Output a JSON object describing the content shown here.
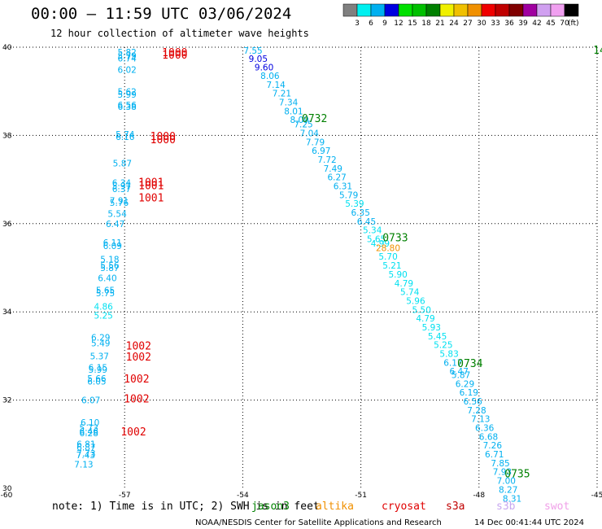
{
  "title": "00:00 — 11:59 UTC 03/06/2024",
  "subtitle": "12 hour collection of altimeter wave heights",
  "colorbar": {
    "colors": [
      "#808080",
      "#00f0f0",
      "#00b0f0",
      "#0000e0",
      "#00e000",
      "#00c000",
      "#008000",
      "#f0f000",
      "#f0c000",
      "#f09000",
      "#f00000",
      "#c00000",
      "#800000",
      "#a000a0",
      "#d0a0f0",
      "#f0a0f0",
      "#000000"
    ],
    "labels": [
      "3",
      "6",
      "9",
      "12",
      "15",
      "18",
      "21",
      "24",
      "27",
      "30",
      "33",
      "36",
      "39",
      "42",
      "45",
      "70"
    ],
    "unit": "(ft)"
  },
  "chart_data": {
    "type": "scatter",
    "xlim": [
      -60,
      -45
    ],
    "ylim": [
      30,
      40
    ],
    "x_ticks": [
      "-60",
      "-57",
      "-54",
      "-51",
      "-48",
      "-45"
    ],
    "y_ticks": [
      "30",
      "32",
      "34",
      "36",
      "38",
      "40"
    ],
    "grid": true,
    "swh_points": [
      {
        "x": -57.18,
        "y": 39.82,
        "v": "5.82",
        "c": "#00b0f0"
      },
      {
        "x": -57.18,
        "y": 39.73,
        "v": "5.79",
        "c": "#00b0f0"
      },
      {
        "x": -57.18,
        "y": 39.68,
        "v": "6.74",
        "c": "#00b0f0"
      },
      {
        "x": -57.18,
        "y": 39.42,
        "v": "6.02",
        "c": "#00b0f0"
      },
      {
        "x": -57.18,
        "y": 38.92,
        "v": "5.62",
        "c": "#00b0f0"
      },
      {
        "x": -57.18,
        "y": 38.86,
        "v": "5.99",
        "c": "#00b0f0"
      },
      {
        "x": -57.18,
        "y": 38.62,
        "v": "6.56",
        "c": "#00b0f0"
      },
      {
        "x": -57.18,
        "y": 38.58,
        "v": "6.38",
        "c": "#00b0f0"
      },
      {
        "x": -57.23,
        "y": 37.95,
        "v": "5.74",
        "c": "#00b0f0"
      },
      {
        "x": -57.23,
        "y": 37.9,
        "v": "6.16",
        "c": "#00b0f0"
      },
      {
        "x": -57.3,
        "y": 37.3,
        "v": "5.87",
        "c": "#00b0f0"
      },
      {
        "x": -57.32,
        "y": 36.85,
        "v": "6.34",
        "c": "#00b0f0"
      },
      {
        "x": -57.32,
        "y": 36.78,
        "v": "5.97",
        "c": "#00b0f0"
      },
      {
        "x": -57.32,
        "y": 36.72,
        "v": "6.37",
        "c": "#00b0f0"
      },
      {
        "x": -57.38,
        "y": 36.45,
        "v": "7.91",
        "c": "#00b0f0"
      },
      {
        "x": -57.38,
        "y": 36.4,
        "v": "5.76",
        "c": "#00b0f0"
      },
      {
        "x": -57.43,
        "y": 36.15,
        "v": "5.54",
        "c": "#00b0f0"
      },
      {
        "x": -57.48,
        "y": 35.92,
        "v": "6.47",
        "c": "#00b0f0"
      },
      {
        "x": -57.55,
        "y": 35.5,
        "v": "6.11",
        "c": "#00b0f0"
      },
      {
        "x": -57.55,
        "y": 35.42,
        "v": "6.09",
        "c": "#00b0f0"
      },
      {
        "x": -57.62,
        "y": 35.12,
        "v": "5.18",
        "c": "#00b0f0"
      },
      {
        "x": -57.62,
        "y": 34.98,
        "v": "5.56",
        "c": "#00b0f0"
      },
      {
        "x": -57.62,
        "y": 34.93,
        "v": "5.87",
        "c": "#00b0f0"
      },
      {
        "x": -57.68,
        "y": 34.7,
        "v": "6.40",
        "c": "#00b0f0"
      },
      {
        "x": -57.73,
        "y": 34.42,
        "v": "5.65",
        "c": "#00b0f0"
      },
      {
        "x": -57.73,
        "y": 34.35,
        "v": "5.75",
        "c": "#00b0f0"
      },
      {
        "x": -57.78,
        "y": 34.05,
        "v": "4.86",
        "c": "#00e0f0"
      },
      {
        "x": -57.78,
        "y": 33.85,
        "v": "5.25",
        "c": "#00e0f0"
      },
      {
        "x": -57.85,
        "y": 33.35,
        "v": "6.29",
        "c": "#00b0f0"
      },
      {
        "x": -57.85,
        "y": 33.22,
        "v": "5.49",
        "c": "#00b0f0"
      },
      {
        "x": -57.88,
        "y": 32.92,
        "v": "5.37",
        "c": "#00b0f0"
      },
      {
        "x": -57.92,
        "y": 32.67,
        "v": "6.15",
        "c": "#00b0f0"
      },
      {
        "x": -57.92,
        "y": 32.62,
        "v": "5.99",
        "c": "#00b0f0"
      },
      {
        "x": -57.95,
        "y": 32.42,
        "v": "5.66",
        "c": "#00b0f0"
      },
      {
        "x": -57.95,
        "y": 32.35,
        "v": "6.05",
        "c": "#00b0f0"
      },
      {
        "x": -58.1,
        "y": 31.93,
        "v": "6.07",
        "c": "#00b0f0"
      },
      {
        "x": -58.12,
        "y": 31.42,
        "v": "6.10",
        "c": "#00b0f0"
      },
      {
        "x": -58.15,
        "y": 31.3,
        "v": "5.73",
        "c": "#00b0f0"
      },
      {
        "x": -58.15,
        "y": 31.22,
        "v": "6.46",
        "c": "#00b0f0"
      },
      {
        "x": -58.15,
        "y": 31.18,
        "v": "6.28",
        "c": "#00b0f0"
      },
      {
        "x": -58.22,
        "y": 30.93,
        "v": "6.81",
        "c": "#00b0f0"
      },
      {
        "x": -58.22,
        "y": 30.86,
        "v": "6.87",
        "c": "#00b0f0"
      },
      {
        "x": -58.22,
        "y": 30.72,
        "v": "7.73",
        "c": "#00b0f0"
      },
      {
        "x": -58.23,
        "y": 30.68,
        "v": "7.43",
        "c": "#00b0f0"
      },
      {
        "x": -58.28,
        "y": 30.47,
        "v": "7.13",
        "c": "#00b0f0"
      },
      {
        "x": -53.98,
        "y": 39.85,
        "v": "7.55",
        "c": "#00b0f0"
      },
      {
        "x": -53.85,
        "y": 39.67,
        "v": "9.05",
        "c": "#0000e0"
      },
      {
        "x": -53.7,
        "y": 39.47,
        "v": "9.60",
        "c": "#0000e0"
      },
      {
        "x": -53.55,
        "y": 39.28,
        "v": "8.06",
        "c": "#00b0f0"
      },
      {
        "x": -53.4,
        "y": 39.08,
        "v": "7.14",
        "c": "#00b0f0"
      },
      {
        "x": -53.25,
        "y": 38.88,
        "v": "7.21",
        "c": "#00b0f0"
      },
      {
        "x": -53.08,
        "y": 38.68,
        "v": "7.34",
        "c": "#00b0f0"
      },
      {
        "x": -52.95,
        "y": 38.48,
        "v": "8.01",
        "c": "#00b0f0"
      },
      {
        "x": -52.8,
        "y": 38.28,
        "v": "8.09",
        "c": "#00b0f0"
      },
      {
        "x": -52.7,
        "y": 38.18,
        "v": "7.25",
        "c": "#00b0f0"
      },
      {
        "x": -52.55,
        "y": 37.98,
        "v": "7.04",
        "c": "#00b0f0"
      },
      {
        "x": -52.4,
        "y": 37.78,
        "v": "7.79",
        "c": "#00b0f0"
      },
      {
        "x": -52.25,
        "y": 37.58,
        "v": "6.97",
        "c": "#00b0f0"
      },
      {
        "x": -52.1,
        "y": 37.38,
        "v": "7.72",
        "c": "#00b0f0"
      },
      {
        "x": -51.95,
        "y": 37.18,
        "v": "7.49",
        "c": "#00b0f0"
      },
      {
        "x": -51.85,
        "y": 36.98,
        "v": "6.27",
        "c": "#00b0f0"
      },
      {
        "x": -51.7,
        "y": 36.78,
        "v": "6.31",
        "c": "#00b0f0"
      },
      {
        "x": -51.55,
        "y": 36.58,
        "v": "5.79",
        "c": "#00b0f0"
      },
      {
        "x": -51.4,
        "y": 36.38,
        "v": "5.39",
        "c": "#00e0f0"
      },
      {
        "x": -51.25,
        "y": 36.18,
        "v": "6.35",
        "c": "#00b0f0"
      },
      {
        "x": -51.1,
        "y": 35.98,
        "v": "6.45",
        "c": "#00b0f0"
      },
      {
        "x": -50.95,
        "y": 35.78,
        "v": "5.34",
        "c": "#00e0f0"
      },
      {
        "x": -50.85,
        "y": 35.58,
        "v": "5.65",
        "c": "#00e0f0"
      },
      {
        "x": -50.75,
        "y": 35.48,
        "v": "4.99",
        "c": "#00e0f0"
      },
      {
        "x": -50.62,
        "y": 35.38,
        "v": "28.80",
        "c": "#f09000"
      },
      {
        "x": -50.55,
        "y": 35.18,
        "v": "5.70",
        "c": "#00e0f0"
      },
      {
        "x": -50.45,
        "y": 34.98,
        "v": "5.21",
        "c": "#00e0f0"
      },
      {
        "x": -50.3,
        "y": 34.78,
        "v": "5.90",
        "c": "#00e0f0"
      },
      {
        "x": -50.15,
        "y": 34.58,
        "v": "4.79",
        "c": "#00e0f0"
      },
      {
        "x": -50.0,
        "y": 34.38,
        "v": "5.74",
        "c": "#00e0f0"
      },
      {
        "x": -49.85,
        "y": 34.18,
        "v": "5.96",
        "c": "#00e0f0"
      },
      {
        "x": -49.7,
        "y": 33.98,
        "v": "5.50",
        "c": "#00e0f0"
      },
      {
        "x": -49.6,
        "y": 33.78,
        "v": "4.79",
        "c": "#00e0f0"
      },
      {
        "x": -49.45,
        "y": 33.58,
        "v": "5.93",
        "c": "#00e0f0"
      },
      {
        "x": -49.3,
        "y": 33.38,
        "v": "5.45",
        "c": "#00e0f0"
      },
      {
        "x": -49.15,
        "y": 33.18,
        "v": "5.25",
        "c": "#00e0f0"
      },
      {
        "x": -49.0,
        "y": 32.98,
        "v": "5.83",
        "c": "#00e0f0"
      },
      {
        "x": -48.9,
        "y": 32.78,
        "v": "6.17",
        "c": "#00b0f0"
      },
      {
        "x": -48.75,
        "y": 32.58,
        "v": "6.47",
        "c": "#00b0f0"
      },
      {
        "x": -48.7,
        "y": 32.5,
        "v": "5.87",
        "c": "#00b0f0"
      },
      {
        "x": -48.6,
        "y": 32.3,
        "v": "6.29",
        "c": "#00b0f0"
      },
      {
        "x": -48.5,
        "y": 32.1,
        "v": "6.19",
        "c": "#00b0f0"
      },
      {
        "x": -48.4,
        "y": 31.9,
        "v": "6.56",
        "c": "#00b0f0"
      },
      {
        "x": -48.3,
        "y": 31.7,
        "v": "7.28",
        "c": "#00b0f0"
      },
      {
        "x": -48.2,
        "y": 31.5,
        "v": "7.13",
        "c": "#00b0f0"
      },
      {
        "x": -48.1,
        "y": 31.3,
        "v": "6.36",
        "c": "#00b0f0"
      },
      {
        "x": -48.0,
        "y": 31.1,
        "v": "6.68",
        "c": "#00b0f0"
      },
      {
        "x": -47.9,
        "y": 30.9,
        "v": "7.26",
        "c": "#00b0f0"
      },
      {
        "x": -47.85,
        "y": 30.7,
        "v": "6.71",
        "c": "#00b0f0"
      },
      {
        "x": -47.7,
        "y": 30.5,
        "v": "7.85",
        "c": "#00b0f0"
      },
      {
        "x": -47.65,
        "y": 30.3,
        "v": "7.93",
        "c": "#00b0f0"
      },
      {
        "x": -47.55,
        "y": 30.1,
        "v": "7.00",
        "c": "#00b0f0"
      },
      {
        "x": -47.5,
        "y": 29.9,
        "v": "8.27",
        "c": "#00b0f0"
      },
      {
        "x": -47.4,
        "y": 29.7,
        "v": "8.31",
        "c": "#00b0f0"
      }
    ],
    "time_labels": [
      {
        "x": -52.5,
        "y": 38.3,
        "v": "0732",
        "c": "#008000"
      },
      {
        "x": -50.45,
        "y": 35.6,
        "v": "0733",
        "c": "#008000"
      },
      {
        "x": -48.55,
        "y": 32.75,
        "v": "0734",
        "c": "#008000"
      },
      {
        "x": -47.35,
        "y": 30.25,
        "v": "0735",
        "c": "#008000"
      },
      {
        "x": -45.1,
        "y": 39.85,
        "v": "14",
        "c": "#008000"
      }
    ],
    "red_labels": [
      {
        "x": -56.05,
        "y": 39.8,
        "v": "1000"
      },
      {
        "x": -56.05,
        "y": 39.74,
        "v": "1000"
      },
      {
        "x": -56.35,
        "y": 37.9,
        "v": "1000"
      },
      {
        "x": -56.35,
        "y": 37.82,
        "v": "1000"
      },
      {
        "x": -56.65,
        "y": 36.85,
        "v": "1001"
      },
      {
        "x": -56.65,
        "y": 36.78,
        "v": "1001"
      },
      {
        "x": -56.65,
        "y": 36.5,
        "v": "1001"
      },
      {
        "x": -56.97,
        "y": 33.15,
        "v": "1002"
      },
      {
        "x": -56.97,
        "y": 32.9,
        "v": "1002"
      },
      {
        "x": -57.02,
        "y": 32.4,
        "v": "1002"
      },
      {
        "x": -57.02,
        "y": 31.95,
        "v": "1002"
      },
      {
        "x": -57.1,
        "y": 31.2,
        "v": "1002"
      }
    ]
  },
  "footer": {
    "note_prefix": "note:  1) Time is in UTC; 2) SWH is in feet",
    "legend": [
      {
        "label": "jason3",
        "color": "#008000"
      },
      {
        "label": "altika",
        "color": "#f09000"
      },
      {
        "label": "cryosat",
        "color": "#e00000"
      },
      {
        "label": "s3a",
        "color": "#c00000"
      },
      {
        "label": "s3b",
        "color": "#c8a8f0"
      },
      {
        "label": "swot",
        "color": "#f0a0e8"
      }
    ],
    "credit": "NOAA/NESDIS Center for Satellite Applications and Research",
    "timestamp": "14 Dec 00:41:44 UTC 2024"
  }
}
